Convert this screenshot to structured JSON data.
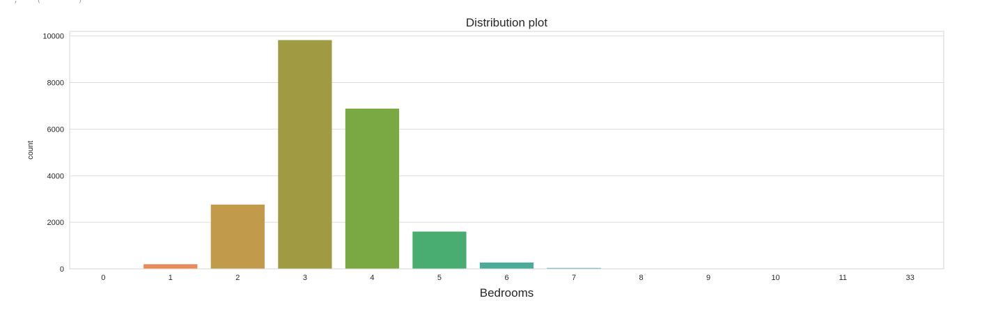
{
  "page": {
    "top_fragment": "  ,    (        )"
  },
  "chart_data": {
    "type": "bar",
    "title": "Distribution plot",
    "xlabel": "Bedrooms",
    "ylabel": "count",
    "categories": [
      "0",
      "1",
      "2",
      "3",
      "4",
      "5",
      "6",
      "7",
      "8",
      "9",
      "10",
      "11",
      "33"
    ],
    "values": [
      13,
      199,
      2760,
      9824,
      6882,
      1601,
      272,
      38,
      13,
      6,
      3,
      1,
      1
    ],
    "ylim": [
      0,
      10200
    ],
    "yticks": [
      0,
      2000,
      4000,
      6000,
      8000,
      10000
    ],
    "grid": true,
    "colors": [
      "#e8776a",
      "#e98a5a",
      "#c29a4b",
      "#a09a42",
      "#7aa944",
      "#49ad72",
      "#4aab98",
      "#4aa9ad",
      "#4ca9c3",
      "#5aa6da",
      "#8d9be7",
      "#c291e8",
      "#e98ad0"
    ],
    "style": {
      "grid_color": "#dcdcdc",
      "frame_color": "#d6d6d6"
    }
  }
}
